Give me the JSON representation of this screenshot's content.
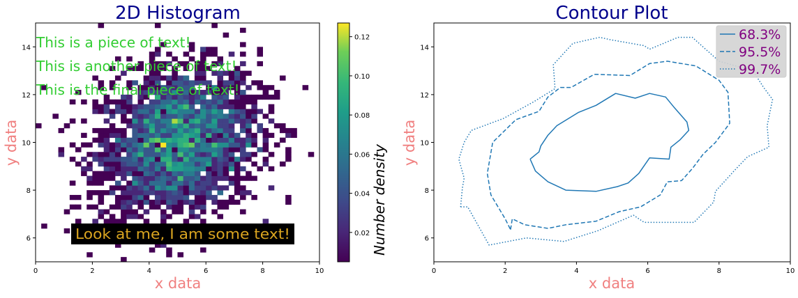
{
  "chart_data": [
    {
      "type": "heatmap",
      "title": "2D Histogram",
      "xlabel": "x data",
      "ylabel": "y data",
      "xlim": [
        0,
        10
      ],
      "ylim": [
        5,
        15
      ],
      "xticks": [
        "0",
        "2",
        "4",
        "6",
        "8",
        "10"
      ],
      "yticks": [
        "6",
        "8",
        "10",
        "12",
        "14"
      ],
      "bins": 50,
      "center": [
        5.0,
        10.0
      ],
      "spread": [
        1.4,
        1.6
      ],
      "correlation": 0.2,
      "colorscale": "viridis",
      "colorbar": {
        "label": "Number density",
        "range": [
          0.005,
          0.127
        ],
        "ticks": [
          "0.02",
          "0.04",
          "0.06",
          "0.08",
          "0.10",
          "0.12"
        ]
      },
      "annotations": [
        {
          "text": "This is a piece of text!",
          "color": "#32cd32"
        },
        {
          "text": "This is another piece of text!",
          "color": "#32cd32"
        },
        {
          "text": "This is the final piece of text!",
          "color": "#32cd32"
        },
        {
          "text": "Look at me, I am some text!",
          "color": "#daa520",
          "background": "#000000"
        }
      ]
    },
    {
      "type": "line",
      "title": "Contour Plot",
      "xlabel": "x data",
      "ylabel": "y data",
      "xlim": [
        0,
        10
      ],
      "ylim": [
        5,
        15
      ],
      "xticks": [
        "0",
        "2",
        "4",
        "6",
        "8",
        "10"
      ],
      "yticks": [
        "6",
        "8",
        "10",
        "12",
        "14"
      ],
      "legend_placement": "top-right",
      "series": [
        {
          "name": "68.3%",
          "style": "solid",
          "x": [
            2.7,
            2.85,
            3.2,
            3.7,
            4.55,
            5.15,
            5.45,
            5.75,
            6.05,
            6.6,
            6.65,
            6.9,
            7.15,
            7.1,
            6.75,
            6.5,
            6.05,
            5.65,
            5.1,
            4.55,
            4.05,
            3.45,
            3.2,
            3.0,
            2.95,
            2.7
          ],
          "y": [
            9.3,
            8.8,
            8.35,
            8.0,
            7.95,
            8.15,
            8.3,
            8.7,
            9.35,
            9.3,
            9.8,
            10.1,
            10.5,
            10.85,
            11.45,
            11.9,
            12.05,
            11.85,
            12.05,
            11.55,
            11.25,
            10.7,
            10.3,
            9.85,
            9.6,
            9.3
          ]
        },
        {
          "name": "95.5%",
          "style": "dashed",
          "x": [
            2.15,
            2.2,
            2.55,
            3.2,
            3.7,
            4.55,
            5.2,
            5.8,
            6.35,
            6.55,
            6.95,
            7.25,
            7.55,
            7.9,
            8.3,
            8.25,
            8.0,
            7.35,
            6.55,
            6.05,
            5.5,
            4.5,
            3.85,
            3.55,
            3.2,
            2.95,
            2.3,
            1.65,
            1.5,
            1.6,
            2.0,
            2.15
          ],
          "y": [
            6.35,
            6.8,
            6.55,
            6.4,
            6.55,
            6.7,
            7.1,
            7.3,
            7.8,
            8.35,
            8.4,
            8.9,
            9.5,
            10.0,
            10.8,
            12.1,
            12.6,
            13.2,
            13.4,
            13.3,
            12.8,
            12.85,
            12.3,
            12.3,
            11.9,
            11.3,
            10.95,
            10.0,
            8.7,
            7.8,
            6.8,
            6.35
          ]
        },
        {
          "name": "99.7%",
          "style": "dotted",
          "x": [
            0.75,
            0.95,
            1.55,
            2.6,
            3.65,
            4.6,
            5.6,
            5.9,
            7.3,
            7.85,
            7.9,
            8.45,
            8.8,
            9.4,
            9.35,
            9.5,
            9.25,
            8.95,
            8.0,
            7.25,
            6.85,
            6.05,
            5.9,
            4.95,
            4.65,
            3.9,
            3.35,
            3.4,
            2.8,
            1.95,
            1.05,
            0.85,
            0.7,
            0.85,
            0.8,
            0.75
          ],
          "y": [
            7.3,
            7.3,
            5.7,
            6.0,
            5.85,
            6.3,
            6.95,
            6.65,
            6.65,
            7.5,
            7.95,
            8.85,
            9.4,
            9.8,
            10.7,
            11.8,
            12.3,
            13.0,
            13.4,
            14.4,
            14.4,
            13.9,
            14.05,
            14.3,
            14.4,
            14.15,
            13.25,
            12.25,
            11.7,
            11.0,
            10.5,
            10.0,
            9.3,
            8.5,
            8.1,
            7.3
          ]
        }
      ]
    }
  ]
}
